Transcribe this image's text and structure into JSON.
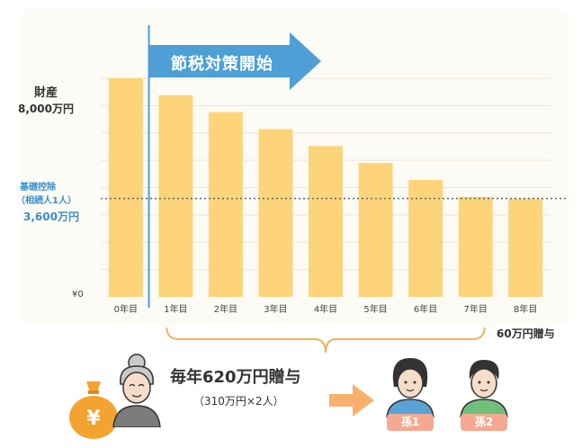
{
  "chart_data": {
    "type": "bar",
    "categories": [
      "0年目",
      "1年目",
      "2年目",
      "3年目",
      "4年目",
      "5年目",
      "6年目",
      "7年目",
      "8年目"
    ],
    "values": [
      8000,
      7380,
      6760,
      6140,
      5520,
      4900,
      4280,
      3660,
      3600
    ],
    "ylim": [
      0,
      8000
    ],
    "y_title": "財産",
    "y_top_label": "8,000万円",
    "y_zero_label": "¥0",
    "bar_color": "#fdd47a",
    "grid": true
  },
  "basic_deduction": {
    "line1": "基礎控除",
    "line2": "（相続人1人）",
    "value_label": "3,600万円",
    "value": 3600,
    "color": "#3a8fc6"
  },
  "start_marker": {
    "label": "節税対策開始",
    "after_category_index": 0,
    "color": "#4d9fd6"
  },
  "gift_per_year_label": "60万円贈与",
  "gift_summary": {
    "main": "毎年620万円贈与",
    "sub": "（310万円×2人）"
  },
  "grandchildren": [
    "孫1",
    "孫2"
  ],
  "icons": [
    "money-bag-icon",
    "grandmother-icon",
    "right-arrow-icon",
    "grandchild-girl-icon",
    "grandchild-boy-icon"
  ],
  "colors": {
    "brace": "#f0b25a",
    "arrow": "#f9b06c",
    "tag": "#f5a990",
    "money_bag": "#f3a330"
  }
}
